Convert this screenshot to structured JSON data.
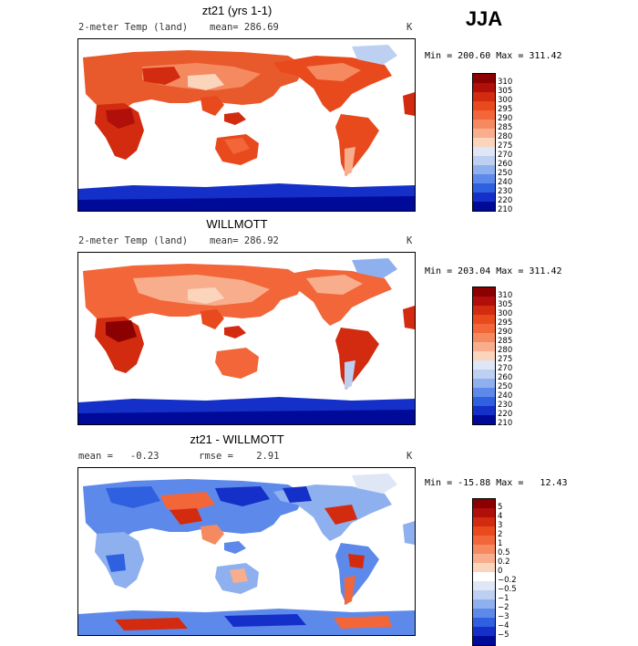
{
  "season": "JJA",
  "panels": [
    {
      "title": "zt21 (yrs 1-1)",
      "field_label": "2-meter Temp (land)",
      "mean": "mean= 286.69",
      "units": "K",
      "minmax": "Min = 200.60 Max = 311.42",
      "levels": [
        "310",
        "305",
        "300",
        "295",
        "290",
        "285",
        "280",
        "275",
        "270",
        "260",
        "250",
        "240",
        "230",
        "220",
        "210"
      ],
      "colors": [
        "#8b0000",
        "#b00f0a",
        "#d22b0f",
        "#e84a1e",
        "#f2663a",
        "#f58a60",
        "#f8ae8c",
        "#fbd4bc",
        "#dfe6f6",
        "#bdd0f2",
        "#8fb0ee",
        "#5d8aea",
        "#2e60e0",
        "#1530c8",
        "#000a99"
      ]
    },
    {
      "title": "WILLMOTT",
      "field_label": "2-meter Temp (land)",
      "mean": "mean= 286.92",
      "units": "K",
      "minmax": "Min = 203.04 Max = 311.42",
      "levels": [
        "310",
        "305",
        "300",
        "295",
        "290",
        "285",
        "280",
        "275",
        "270",
        "260",
        "250",
        "240",
        "230",
        "220",
        "210"
      ],
      "colors": [
        "#8b0000",
        "#b00f0a",
        "#d22b0f",
        "#e84a1e",
        "#f2663a",
        "#f58a60",
        "#f8ae8c",
        "#fbd4bc",
        "#dfe6f6",
        "#bdd0f2",
        "#8fb0ee",
        "#5d8aea",
        "#2e60e0",
        "#1530c8",
        "#000a99"
      ]
    },
    {
      "title": "zt21 - WILLMOTT",
      "field_label": "mean =   -0.23",
      "mean": "rmse =    2.91",
      "units": "K",
      "minmax": "Min = -15.88 Max =   12.43",
      "levels": [
        "5",
        "4",
        "3",
        "2",
        "1",
        "0.5",
        "0.2",
        "0",
        "−0.2",
        "−0.5",
        "−1",
        "−2",
        "−3",
        "−4",
        "−5"
      ],
      "colors": [
        "#8b0000",
        "#b00f0a",
        "#d22b0f",
        "#e84a1e",
        "#f2663a",
        "#f58a60",
        "#f8ae8c",
        "#fbd4bc",
        "#ffffff",
        "#dfe6f6",
        "#bdd0f2",
        "#8fb0ee",
        "#5d8aea",
        "#2e60e0",
        "#1530c8",
        "#000a99"
      ]
    }
  ]
}
